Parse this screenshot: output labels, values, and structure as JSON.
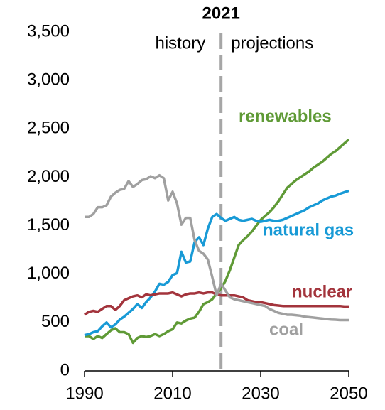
{
  "chart_data": {
    "type": "line",
    "x": [
      1990,
      1991,
      1992,
      1993,
      1994,
      1995,
      1996,
      1997,
      1998,
      1999,
      2000,
      2001,
      2002,
      2003,
      2004,
      2005,
      2006,
      2007,
      2008,
      2009,
      2010,
      2011,
      2012,
      2013,
      2014,
      2015,
      2016,
      2017,
      2018,
      2019,
      2020,
      2021,
      2022,
      2023,
      2024,
      2025,
      2026,
      2027,
      2028,
      2029,
      2030,
      2031,
      2032,
      2033,
      2034,
      2035,
      2036,
      2037,
      2038,
      2039,
      2040,
      2041,
      2042,
      2043,
      2044,
      2045,
      2046,
      2047,
      2048,
      2049,
      2050
    ],
    "series": [
      {
        "name": "renewables",
        "color": "#5f9a36",
        "values": [
          360,
          360,
          330,
          360,
          340,
          380,
          420,
          440,
          400,
          400,
          380,
          290,
          340,
          360,
          350,
          360,
          380,
          360,
          380,
          410,
          430,
          500,
          490,
          520,
          540,
          550,
          610,
          690,
          710,
          740,
          800,
          850,
          930,
          1040,
          1170,
          1300,
          1350,
          1390,
          1440,
          1500,
          1560,
          1600,
          1640,
          1690,
          1750,
          1820,
          1890,
          1930,
          1970,
          2000,
          2030,
          2060,
          2100,
          2130,
          2160,
          2200,
          2240,
          2270,
          2310,
          2350,
          2390
        ]
      },
      {
        "name": "natural gas",
        "color": "#189ad6",
        "values": [
          370,
          380,
          400,
          410,
          460,
          500,
          450,
          480,
          530,
          560,
          600,
          640,
          690,
          650,
          710,
          760,
          820,
          900,
          890,
          920,
          990,
          1010,
          1230,
          1120,
          1130,
          1330,
          1380,
          1300,
          1470,
          1590,
          1620,
          1580,
          1550,
          1570,
          1590,
          1560,
          1550,
          1560,
          1570,
          1550,
          1540,
          1550,
          1560,
          1550,
          1550,
          1560,
          1580,
          1600,
          1620,
          1640,
          1660,
          1690,
          1710,
          1730,
          1760,
          1780,
          1800,
          1810,
          1830,
          1845,
          1860
        ]
      },
      {
        "name": "nuclear",
        "color": "#a3343c",
        "values": [
          580,
          610,
          620,
          610,
          640,
          670,
          670,
          630,
          670,
          730,
          750,
          770,
          780,
          760,
          790,
          780,
          790,
          800,
          800,
          800,
          810,
          790,
          770,
          790,
          800,
          800,
          810,
          800,
          810,
          810,
          790,
          780,
          780,
          780,
          780,
          770,
          760,
          730,
          720,
          710,
          710,
          700,
          690,
          680,
          675,
          670,
          670,
          670,
          670,
          670,
          670,
          670,
          670,
          670,
          670,
          670,
          670,
          670,
          670,
          665,
          665
        ]
      },
      {
        "name": "coal",
        "color": "#a0a0a0",
        "values": [
          1590,
          1590,
          1620,
          1690,
          1690,
          1710,
          1800,
          1840,
          1870,
          1880,
          1960,
          1900,
          1930,
          1970,
          1980,
          2010,
          1990,
          2020,
          1990,
          1760,
          1850,
          1730,
          1510,
          1580,
          1580,
          1350,
          1240,
          1210,
          1150,
          970,
          780,
          900,
          830,
          760,
          740,
          730,
          720,
          710,
          700,
          690,
          680,
          670,
          640,
          620,
          600,
          590,
          580,
          580,
          575,
          570,
          560,
          555,
          550,
          545,
          540,
          535,
          530,
          528,
          525,
          525,
          525
        ]
      }
    ],
    "xlim": [
      1990,
      2050
    ],
    "xticks": [
      1990,
      2010,
      2030,
      2050
    ],
    "ylim": [
      0,
      3500
    ],
    "yticks": [
      0,
      500,
      {
        "value": 1000,
        "label": "1,000"
      },
      {
        "value": 1500,
        "label": "1,500"
      },
      {
        "value": 2000,
        "label": "2,000"
      },
      {
        "value": 2500,
        "label": "2,500"
      },
      {
        "value": 3000,
        "label": "3,000"
      },
      {
        "value": 3500,
        "label": "3,500"
      }
    ],
    "divider": 2021,
    "annotations": [
      "history",
      "projections"
    ],
    "grid": false
  }
}
